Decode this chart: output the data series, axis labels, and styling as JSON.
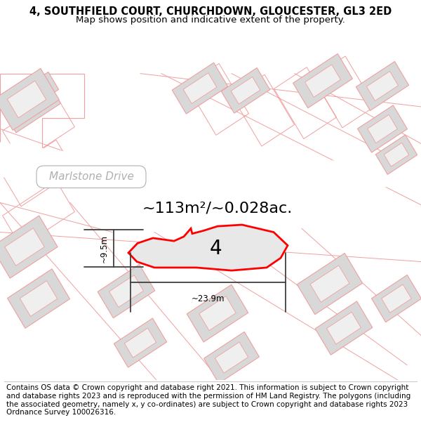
{
  "title_line1": "4, SOUTHFIELD COURT, CHURCHDOWN, GLOUCESTER, GL3 2ED",
  "title_line2": "Map shows position and indicative extent of the property.",
  "area_text": "~113m²/~0.028ac.",
  "width_label": "~23.9m",
  "height_label": "~9.5m",
  "property_number": "4",
  "footer_text": "Contains OS data © Crown copyright and database right 2021. This information is subject to Crown copyright and database rights 2023 and is reproduced with the permission of HM Land Registry. The polygons (including the associated geometry, namely x, y co-ordinates) are subject to Crown copyright and database rights 2023 Ordnance Survey 100026316.",
  "bg_color": "#f5f5f5",
  "plot_bg": "#f8f8f8",
  "building_fill": "#d8d8d8",
  "building_inner": "#efefef",
  "lot_line_color": "#f0a0a0",
  "highlight_fill": "#e8e8e8",
  "highlight_outline": "#ff0000",
  "road_label_color": "#b0b0b0",
  "dim_color": "#404040",
  "title_fontsize": 10.5,
  "subtitle_fontsize": 9.5,
  "footer_fontsize": 7.5,
  "title_bold": true
}
